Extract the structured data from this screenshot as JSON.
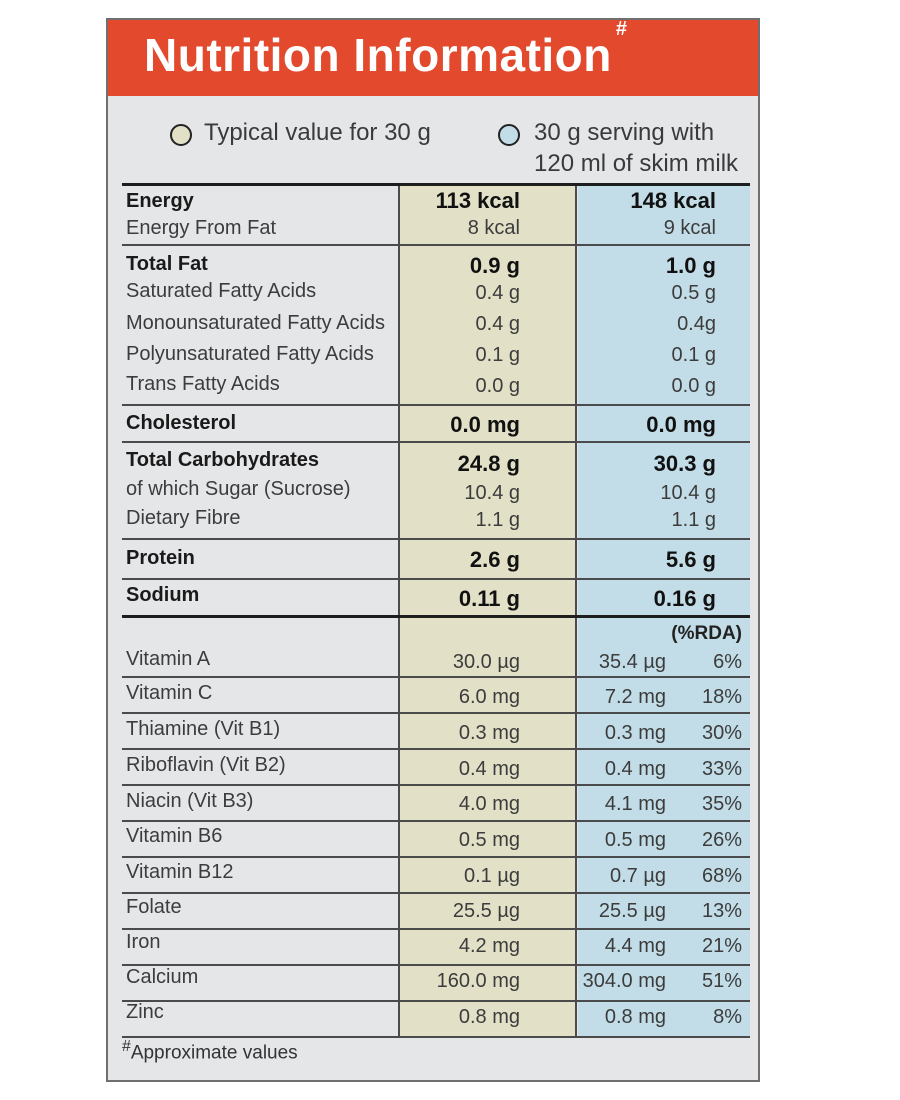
{
  "header": {
    "title": "Nutrition Information",
    "title_mark": "#"
  },
  "legend": {
    "a_label": "Typical value for 30 g",
    "b_line1": "30 g serving with",
    "b_line2": "120 ml of skim milk",
    "a_color": "#e2e1c7",
    "b_color": "#c2dde7"
  },
  "nutrients": [
    {
      "label": "Energy",
      "a": "113 kcal",
      "b": "148 kcal"
    },
    {
      "label": "Energy From Fat",
      "a": "8 kcal",
      "b": "9 kcal"
    },
    {
      "label": "Total Fat",
      "a": "0.9 g",
      "b": "1.0 g"
    },
    {
      "label": "Saturated Fatty Acids",
      "a": "0.4 g",
      "b": "0.5 g"
    },
    {
      "label": "Monounsaturated Fatty Acids",
      "a": "0.4 g",
      "b": "0.4g"
    },
    {
      "label": "Polyunsaturated Fatty Acids",
      "a": "0.1 g",
      "b": "0.1 g"
    },
    {
      "label": "Trans Fatty Acids",
      "a": "0.0 g",
      "b": "0.0 g"
    },
    {
      "label": "Cholesterol",
      "a": "0.0 mg",
      "b": "0.0 mg"
    },
    {
      "label": "Total Carbohydrates",
      "a": "24.8 g",
      "b": "30.3 g"
    },
    {
      "label": "of which Sugar (Sucrose)",
      "a": "10.4 g",
      "b": "10.4 g"
    },
    {
      "label": "Dietary Fibre",
      "a": "1.1 g",
      "b": "1.1 g"
    },
    {
      "label": "Protein",
      "a": "2.6 g",
      "b": "5.6 g"
    },
    {
      "label": "Sodium",
      "a": "0.11 g",
      "b": "0.16 g"
    }
  ],
  "rda_header": "(%RDA)",
  "vitamins": [
    {
      "label": "Vitamin A",
      "a": "30.0 µg",
      "b": "35.4 µg",
      "rda": "6%"
    },
    {
      "label": "Vitamin C",
      "a": "6.0 mg",
      "b": "7.2 mg",
      "rda": "18%"
    },
    {
      "label": "Thiamine (Vit B1)",
      "a": "0.3 mg",
      "b": "0.3 mg",
      "rda": "30%"
    },
    {
      "label": "Riboflavin (Vit B2)",
      "a": "0.4 mg",
      "b": "0.4 mg",
      "rda": "33%"
    },
    {
      "label": "Niacin (Vit B3)",
      "a": "4.0 mg",
      "b": "4.1 mg",
      "rda": "35%"
    },
    {
      "label": "Vitamin B6",
      "a": "0.5 mg",
      "b": "0.5 mg",
      "rda": "26%"
    },
    {
      "label": "Vitamin B12",
      "a": "0.1 µg",
      "b": "0.7 µg",
      "rda": "68%"
    },
    {
      "label": "Folate",
      "a": "25.5 µg",
      "b": "25.5 µg",
      "rda": "13%"
    },
    {
      "label": "Iron",
      "a": "4.2 mg",
      "b": "4.4 mg",
      "rda": "21%"
    },
    {
      "label": "Calcium",
      "a": "160.0 mg",
      "b": "304.0 mg",
      "rda": "51%"
    },
    {
      "label": "Zinc",
      "a": "0.8 mg",
      "b": "0.8 mg",
      "rda": "8%"
    }
  ],
  "footnote": {
    "mark": "#",
    "text": "Approximate values"
  }
}
